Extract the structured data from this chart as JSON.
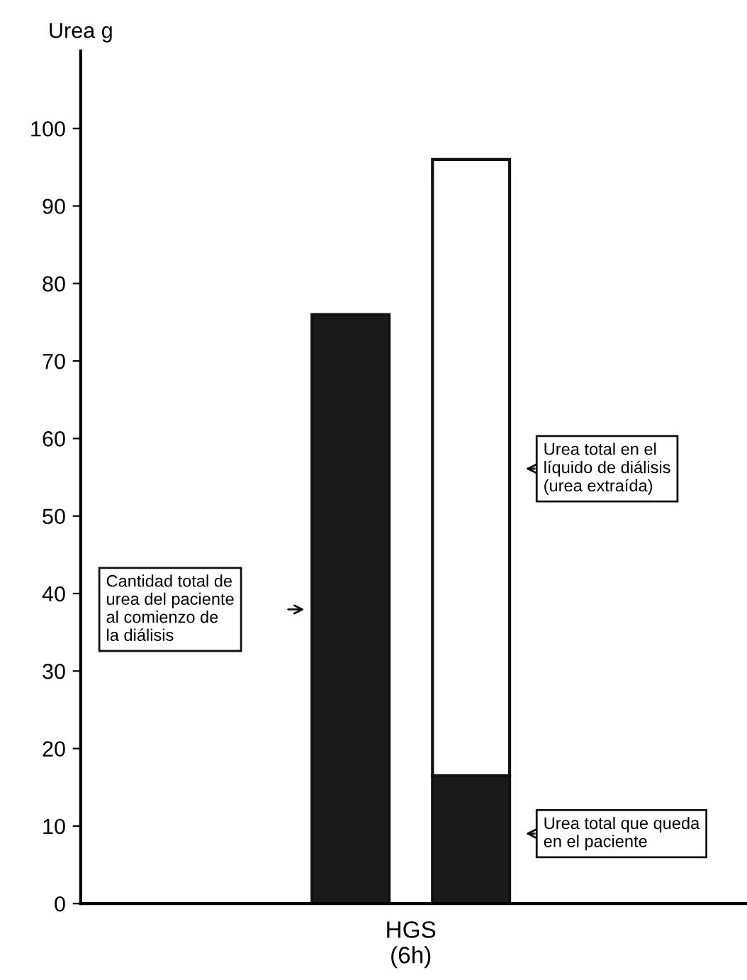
{
  "chart_data": {
    "type": "bar",
    "stacked": true,
    "ylabel": "Urea g",
    "xlabel": "HGS\n(6h)",
    "categories": [
      null,
      null
    ],
    "series": [
      {
        "color": "#1a1a1a",
        "values": [
          76,
          16.5
        ]
      },
      {
        "color": "#ffffff",
        "values": [
          null,
          79.5
        ]
      }
    ],
    "ylim": [
      0,
      110
    ],
    "yticks": [
      0,
      10,
      20,
      30,
      40,
      50,
      60,
      70,
      80,
      90,
      100
    ],
    "grid": false,
    "legend": false,
    "annotations": [
      "Cantidad total de\nurea del paciente\nal comienzo de\nla diálisis",
      "Urea total en el\nlíquido de diálisis\n(urea extraída)",
      "Urea total que queda\nen el paciente"
    ]
  }
}
